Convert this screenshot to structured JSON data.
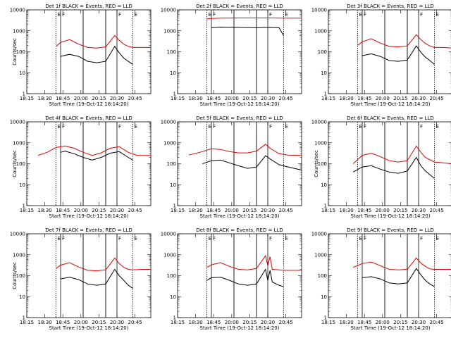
{
  "chart_data": [
    {
      "type": "line",
      "title": "Det 1f BLACK = Events, RED = LLD",
      "xlabel": "Start Time (19-Oct-12 18:14:20)",
      "ylabel": "Counts/sec",
      "yscale": "log",
      "ylim": [
        1,
        10000
      ],
      "x_ticks": [
        "18:15",
        "18:30",
        "18:45",
        "20:00",
        "20:15",
        "20:30",
        "20:45"
      ],
      "y_ticks": [
        "1",
        "10",
        "100",
        "1000",
        "10000"
      ],
      "markers": [
        {
          "x": 18.9,
          "label": "E"
        },
        {
          "x": 19.0,
          "label": "F"
        },
        {
          "x": 20.25,
          "label": "F"
        },
        {
          "x": 20.6,
          "label": "E"
        }
      ],
      "vlines": [
        19.5,
        20.0
      ],
      "series": [
        {
          "name": "RED = LLD",
          "color": "#e00000",
          "x": [
            18.9,
            19.0,
            19.2,
            19.4,
            19.6,
            19.8,
            20.0,
            20.2,
            20.3,
            20.4,
            20.5,
            20.6,
            20.8,
            21.0
          ],
          "y": [
            180,
            280,
            380,
            230,
            160,
            150,
            170,
            600,
            350,
            230,
            180,
            160,
            160,
            160
          ]
        },
        {
          "name": "BLACK = Events",
          "color": "#000000",
          "x": [
            19.0,
            19.2,
            19.4,
            19.6,
            19.8,
            20.0,
            20.2,
            20.3,
            20.4,
            20.5,
            20.6
          ],
          "y": [
            60,
            75,
            60,
            35,
            30,
            35,
            180,
            90,
            50,
            35,
            25
          ]
        }
      ]
    },
    {
      "type": "line",
      "title": "Det 2f BLACK = Events, RED = LLD",
      "xlabel": "Start Time (19-Oct-12 18:14:20)",
      "ylabel": "",
      "yscale": "log",
      "ylim": [
        1,
        10000
      ],
      "x_ticks": [
        "18:15",
        "18:30",
        "18:45",
        "20:00",
        "20:15",
        "20:30",
        "20:45"
      ],
      "y_ticks": [
        "1",
        "10",
        "100",
        "1000",
        "10000"
      ],
      "markers": [
        {
          "x": 18.9,
          "label": "E"
        },
        {
          "x": 19.0,
          "label": "F"
        },
        {
          "x": 20.25,
          "label": "F"
        },
        {
          "x": 20.6,
          "label": "E"
        }
      ],
      "vlines": [
        19.5,
        20.0
      ],
      "series": [
        {
          "name": "RED = LLD",
          "color": "#e00000",
          "x": [
            18.9,
            19.2,
            19.6,
            20.0,
            20.3,
            20.6,
            21.0
          ],
          "y": [
            3800,
            4000,
            4100,
            4100,
            4100,
            4000,
            4000
          ]
        },
        {
          "name": "BLACK = Events",
          "color": "#000000",
          "x": [
            19.0,
            19.2,
            19.6,
            20.0,
            20.3,
            20.5,
            20.6
          ],
          "y": [
            1400,
            1500,
            1450,
            1400,
            1450,
            1400,
            600
          ]
        }
      ]
    },
    {
      "type": "line",
      "title": "Det 3f BLACK = Events, RED = LLD",
      "xlabel": "Start Time (19-Oct-12 18:14:20)",
      "ylabel": "",
      "yscale": "log",
      "ylim": [
        1,
        10000
      ],
      "x_ticks": [
        "18:15",
        "18:30",
        "18:45",
        "20:00",
        "20:15",
        "20:30",
        "20:45"
      ],
      "y_ticks": [
        "1",
        "10",
        "100",
        "1000",
        "10000"
      ],
      "markers": [
        {
          "x": 18.9,
          "label": "E"
        },
        {
          "x": 19.0,
          "label": "F"
        },
        {
          "x": 20.25,
          "label": "F"
        },
        {
          "x": 20.6,
          "label": "E"
        }
      ],
      "vlines": [
        19.5,
        20.0
      ],
      "series": [
        {
          "name": "RED = LLD",
          "color": "#e00000",
          "x": [
            18.9,
            19.0,
            19.2,
            19.4,
            19.6,
            19.8,
            20.0,
            20.2,
            20.3,
            20.4,
            20.5,
            20.6,
            20.8,
            21.0
          ],
          "y": [
            200,
            300,
            420,
            260,
            180,
            170,
            190,
            650,
            380,
            250,
            190,
            160,
            160,
            150
          ]
        },
        {
          "name": "BLACK = Events",
          "color": "#000000",
          "x": [
            19.0,
            19.2,
            19.4,
            19.6,
            19.8,
            20.0,
            20.2,
            20.3,
            20.4,
            20.5,
            20.6
          ],
          "y": [
            65,
            80,
            60,
            38,
            35,
            40,
            190,
            95,
            55,
            38,
            25
          ]
        }
      ]
    },
    {
      "type": "line",
      "title": "Det 4f BLACK = Events, RED = LLD",
      "xlabel": "Start Time (19-Oct-12 18:14:20)",
      "ylabel": "Counts/sec",
      "yscale": "log",
      "ylim": [
        1,
        10000
      ],
      "x_ticks": [
        "18:15",
        "18:30",
        "18:45",
        "20:00",
        "20:15",
        "20:30",
        "20:45"
      ],
      "y_ticks": [
        "1",
        "10",
        "100",
        "1000",
        "10000"
      ],
      "markers": [
        {
          "x": 18.9,
          "label": "E"
        },
        {
          "x": 19.0,
          "label": "F"
        },
        {
          "x": 20.25,
          "label": "F"
        },
        {
          "x": 20.6,
          "label": "E"
        }
      ],
      "vlines": [
        19.5,
        20.0
      ],
      "series": [
        {
          "name": "RED = LLD",
          "color": "#e00000",
          "x": [
            18.5,
            18.7,
            18.9,
            19.1,
            19.3,
            19.5,
            19.7,
            19.9,
            20.1,
            20.3,
            20.5,
            20.7,
            21.0
          ],
          "y": [
            250,
            350,
            600,
            700,
            550,
            350,
            250,
            330,
            550,
            650,
            350,
            250,
            250
          ]
        },
        {
          "name": "BLACK = Events",
          "color": "#000000",
          "x": [
            19.0,
            19.1,
            19.3,
            19.5,
            19.7,
            19.9,
            20.1,
            20.3,
            20.5,
            20.6
          ],
          "y": [
            350,
            400,
            300,
            200,
            150,
            200,
            320,
            380,
            200,
            150
          ]
        }
      ]
    },
    {
      "type": "line",
      "title": "Det 5f BLACK = Events, RED = LLD",
      "xlabel": "Start Time (19-Oct-12 18:14:20)",
      "ylabel": "",
      "yscale": "log",
      "ylim": [
        1,
        10000
      ],
      "x_ticks": [
        "18:15",
        "18:30",
        "18:45",
        "20:00",
        "20:15",
        "20:30",
        "20:45"
      ],
      "y_ticks": [
        "1",
        "10",
        "100",
        "1000",
        "10000"
      ],
      "markers": [
        {
          "x": 18.9,
          "label": "E"
        },
        {
          "x": 19.0,
          "label": "F"
        },
        {
          "x": 20.25,
          "label": "F"
        },
        {
          "x": 20.6,
          "label": "E"
        }
      ],
      "vlines": [
        19.5,
        20.0
      ],
      "series": [
        {
          "name": "RED = LLD",
          "color": "#e00000",
          "x": [
            18.5,
            18.8,
            19.0,
            19.2,
            19.4,
            19.6,
            19.8,
            20.0,
            20.2,
            20.3,
            20.5,
            20.7,
            21.0
          ],
          "y": [
            260,
            380,
            520,
            480,
            380,
            330,
            330,
            400,
            850,
            550,
            300,
            260,
            250
          ]
        },
        {
          "name": "BLACK = Events",
          "color": "#000000",
          "x": [
            18.8,
            19.0,
            19.2,
            19.4,
            19.6,
            19.8,
            20.0,
            20.2,
            20.3,
            20.5,
            20.7,
            21.0
          ],
          "y": [
            100,
            140,
            150,
            110,
            80,
            60,
            70,
            240,
            170,
            90,
            70,
            50
          ]
        }
      ]
    },
    {
      "type": "line",
      "title": "Det 6f BLACK = Events, RED = LLD",
      "xlabel": "Start Time (19-Oct-12 18:14:20)",
      "ylabel": "Counts/sec",
      "yscale": "log",
      "ylim": [
        1,
        10000
      ],
      "x_ticks": [
        "18:15",
        "18:30",
        "18:45",
        "20:00",
        "20:15",
        "20:30",
        "20:45"
      ],
      "y_ticks": [
        "1",
        "10",
        "100",
        "1000",
        "10000"
      ],
      "markers": [
        {
          "x": 18.9,
          "label": "E"
        },
        {
          "x": 19.0,
          "label": "F"
        },
        {
          "x": 20.25,
          "label": "F"
        },
        {
          "x": 20.6,
          "label": "E"
        }
      ],
      "vlines": [
        19.5,
        20.0
      ],
      "series": [
        {
          "name": "RED = LLD",
          "color": "#e00000",
          "x": [
            18.8,
            19.0,
            19.2,
            19.4,
            19.6,
            19.8,
            20.0,
            20.2,
            20.3,
            20.4,
            20.6,
            20.8,
            21.0
          ],
          "y": [
            100,
            250,
            320,
            220,
            140,
            120,
            140,
            700,
            350,
            200,
            120,
            110,
            100
          ]
        },
        {
          "name": "BLACK = Events",
          "color": "#000000",
          "x": [
            18.8,
            19.0,
            19.2,
            19.4,
            19.6,
            19.8,
            20.0,
            20.2,
            20.3,
            20.4,
            20.6
          ],
          "y": [
            40,
            70,
            80,
            55,
            40,
            35,
            45,
            200,
            80,
            45,
            20
          ]
        }
      ]
    },
    {
      "type": "line",
      "title": "Det 7f BLACK = Events, RED = LLD",
      "xlabel": "Start Time (19-Oct-12 18:14:20)",
      "ylabel": "Counts/sec",
      "yscale": "log",
      "ylim": [
        1,
        10000
      ],
      "x_ticks": [
        "18:15",
        "18:30",
        "18:45",
        "20:00",
        "20:15",
        "20:30",
        "20:45"
      ],
      "y_ticks": [
        "1",
        "10",
        "100",
        "1000",
        "10000"
      ],
      "markers": [
        {
          "x": 18.9,
          "label": "E"
        },
        {
          "x": 19.0,
          "label": "F"
        },
        {
          "x": 20.25,
          "label": "F"
        },
        {
          "x": 20.6,
          "label": "E"
        }
      ],
      "vlines": [
        19.5,
        20.0
      ],
      "series": [
        {
          "name": "RED = LLD",
          "color": "#e00000",
          "x": [
            18.9,
            19.0,
            19.2,
            19.4,
            19.6,
            19.8,
            20.0,
            20.2,
            20.3,
            20.4,
            20.5,
            20.6,
            20.8,
            21.0
          ],
          "y": [
            220,
            320,
            420,
            260,
            180,
            170,
            190,
            700,
            380,
            250,
            200,
            190,
            200,
            200
          ]
        },
        {
          "name": "BLACK = Events",
          "color": "#000000",
          "x": [
            19.0,
            19.2,
            19.4,
            19.6,
            19.8,
            20.0,
            20.2,
            20.3,
            20.4,
            20.5,
            20.6
          ],
          "y": [
            70,
            85,
            65,
            40,
            35,
            40,
            200,
            100,
            60,
            35,
            25
          ]
        }
      ]
    },
    {
      "type": "line",
      "title": "Det 8f BLACK = Events, RED = LLD",
      "xlabel": "Start Time (19-Oct-12 18:14:20)",
      "ylabel": "",
      "yscale": "log",
      "ylim": [
        1,
        10000
      ],
      "x_ticks": [
        "18:15",
        "18:30",
        "18:45",
        "20:00",
        "20:15",
        "20:30",
        "20:45"
      ],
      "y_ticks": [
        "1",
        "10",
        "100",
        "1000",
        "10000"
      ],
      "markers": [
        {
          "x": 18.9,
          "label": "E"
        },
        {
          "x": 19.0,
          "label": "F"
        },
        {
          "x": 20.25,
          "label": "F"
        },
        {
          "x": 20.6,
          "label": "E"
        }
      ],
      "vlines": [
        19.5,
        20.0
      ],
      "series": [
        {
          "name": "RED = LLD",
          "color": "#e00000",
          "x": [
            18.9,
            19.0,
            19.2,
            19.4,
            19.6,
            19.8,
            20.0,
            20.2,
            20.25,
            20.3,
            20.35,
            20.5,
            20.6,
            20.8,
            21.0
          ],
          "y": [
            250,
            330,
            420,
            280,
            200,
            190,
            220,
            900,
            300,
            800,
            200,
            190,
            180,
            180,
            180
          ]
        },
        {
          "name": "BLACK = Events",
          "color": "#000000",
          "x": [
            18.9,
            19.0,
            19.2,
            19.4,
            19.6,
            19.8,
            20.0,
            20.2,
            20.25,
            20.3,
            20.35,
            20.5,
            20.6
          ],
          "y": [
            60,
            80,
            85,
            60,
            40,
            35,
            40,
            200,
            60,
            180,
            50,
            35,
            30
          ]
        }
      ]
    },
    {
      "type": "line",
      "title": "Det 9f BLACK = Events, RED = LLD",
      "xlabel": "Start Time (19-Oct-12 18:14:20)",
      "ylabel": "",
      "yscale": "log",
      "ylim": [
        1,
        10000
      ],
      "x_ticks": [
        "18:15",
        "18:30",
        "18:45",
        "20:00",
        "20:15",
        "20:30",
        "20:45"
      ],
      "y_ticks": [
        "1",
        "10",
        "100",
        "1000",
        "10000"
      ],
      "markers": [
        {
          "x": 18.9,
          "label": "E"
        },
        {
          "x": 19.0,
          "label": "F"
        },
        {
          "x": 20.25,
          "label": "F"
        },
        {
          "x": 20.6,
          "label": "E"
        }
      ],
      "vlines": [
        19.5,
        20.0
      ],
      "series": [
        {
          "name": "RED = LLD",
          "color": "#e00000",
          "x": [
            18.8,
            19.0,
            19.2,
            19.4,
            19.6,
            19.8,
            20.0,
            20.2,
            20.3,
            20.4,
            20.5,
            20.6,
            20.8,
            21.0
          ],
          "y": [
            250,
            380,
            450,
            300,
            200,
            190,
            200,
            700,
            400,
            280,
            210,
            200,
            200,
            200
          ]
        },
        {
          "name": "BLACK = Events",
          "color": "#000000",
          "x": [
            19.0,
            19.2,
            19.4,
            19.6,
            19.8,
            20.0,
            20.2,
            20.3,
            20.4,
            20.5,
            20.6
          ],
          "y": [
            80,
            90,
            70,
            45,
            40,
            45,
            220,
            110,
            60,
            40,
            30
          ]
        }
      ]
    }
  ]
}
